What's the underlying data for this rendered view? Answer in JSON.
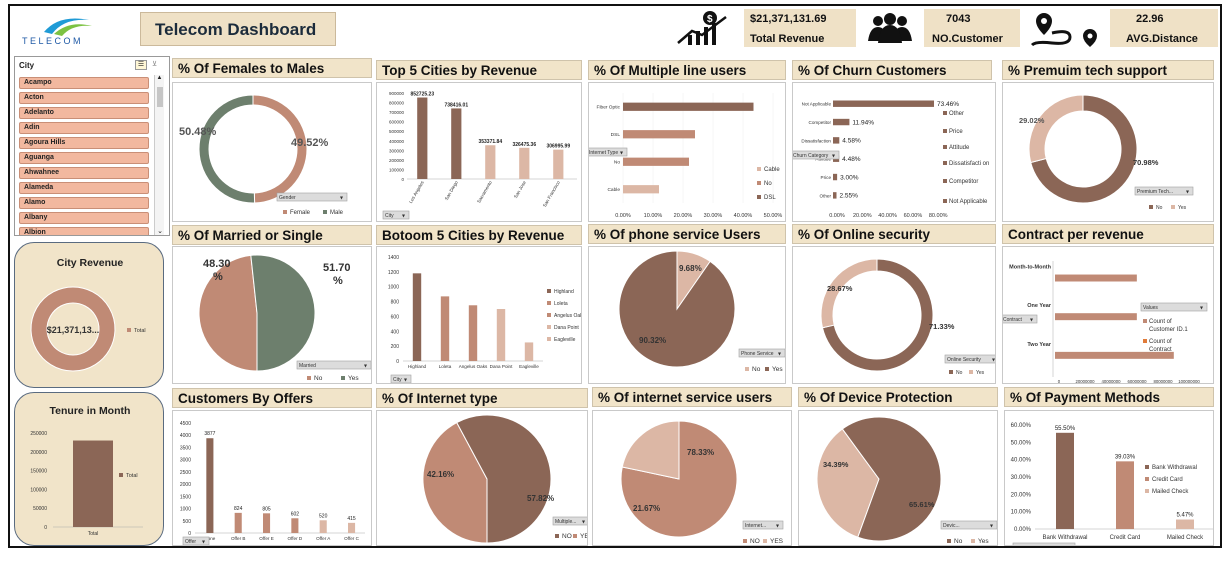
{
  "header": {
    "logo_text": "TELECOM",
    "title": "Telecom Dashboard",
    "kpis": [
      {
        "value": "$21,371,131.69",
        "label": "Total Revenue",
        "icon": "money-growth-icon"
      },
      {
        "value": "7043",
        "label": "NO.Customer",
        "icon": "people-icon"
      },
      {
        "value": "22.96",
        "label": "AVG.Distance",
        "icon": "route-icon"
      }
    ]
  },
  "slicer": {
    "title": "City",
    "items": [
      "Acampo",
      "Acton",
      "Adelanto",
      "Adin",
      "Agoura Hills",
      "Aguanga",
      "Ahwahnee",
      "Alameda",
      "Alamo",
      "Albany",
      "Albion"
    ]
  },
  "colors": {
    "dark": "#8b6656",
    "mid": "#c08a75",
    "light": "#dcb7a5",
    "green": "#6d7f6d",
    "cream": "#f1e4c9"
  },
  "side": {
    "city_revenue": {
      "title": "City Revenue",
      "center": "$21,371,13...",
      "legend": "Total"
    },
    "tenure": {
      "title": "Tenure in Month",
      "legend": "Total",
      "category": "Total",
      "yticks": [
        "250000",
        "200000",
        "150000",
        "100000",
        "50000",
        "0"
      ]
    }
  },
  "panels": {
    "females": {
      "title": "% Of Females to Males",
      "labels": [
        "50.48%",
        "49.52%"
      ],
      "filter": "Gender",
      "legend": [
        "Female",
        "Male"
      ]
    },
    "top5": {
      "title": "Top 5 Cities by Revenue",
      "filter": "City",
      "yticks": [
        "900000",
        "800000",
        "700000",
        "600000",
        "500000",
        "400000",
        "300000",
        "200000",
        "100000",
        "0"
      ]
    },
    "multiple": {
      "title": "% Of Multiple line users",
      "filter": "Internet Type",
      "xticks": [
        "0.00%",
        "10.00%",
        "20.00%",
        "30.00%",
        "40.00%",
        "50.00%"
      ],
      "legend": [
        "Cable",
        "No",
        "DSL"
      ]
    },
    "churn": {
      "title": "% Of Churn Customers",
      "filter": "Churn Category",
      "xticks": [
        "0.00%",
        "20.00%",
        "40.00%",
        "60.00%",
        "80.00%"
      ],
      "legend": [
        "Other",
        "Price",
        "Attitude",
        "Dissatisfacti on",
        "Competitor",
        "Not Applicable"
      ]
    },
    "premium": {
      "title": "% Premuim tech support",
      "labels": [
        "29.02%",
        "70.98%"
      ],
      "filter": "Premium Tech...",
      "legend": [
        "No",
        "Yes"
      ]
    },
    "married": {
      "title": "% Of Married or Single",
      "labels": [
        "48.30 %",
        "51.70 %"
      ],
      "filter": "Married",
      "legend": [
        "No",
        "Yes"
      ]
    },
    "bottom5": {
      "title": "Botoom 5 Cities by Revenue",
      "filter": "City",
      "yticks": [
        "1400",
        "1200",
        "1000",
        "800",
        "600",
        "400",
        "200",
        "0"
      ],
      "legend": [
        "Highland",
        "Loleta",
        "Angelus Oaks",
        "Dana Point",
        "Eagleville"
      ]
    },
    "phone": {
      "title": "% Of phone service Users",
      "labels": [
        "9.68%",
        "90.32%"
      ],
      "filter": "Phone Service",
      "legend": [
        "No",
        "Yes"
      ]
    },
    "security": {
      "title": "% Of Online security",
      "labels": [
        "28.67%",
        "71.33%"
      ],
      "filter": "Online Security",
      "legend": [
        "No",
        "Yes"
      ]
    },
    "contract": {
      "title": "Contract per revenue",
      "filter": "Contract",
      "values_btn": "Values",
      "xticks": [
        "0",
        "20000000",
        "40000000",
        "60000000",
        "80000000",
        "100000000"
      ],
      "legend": [
        "Count of Customer ID.1",
        "Count of Contract"
      ]
    },
    "offers": {
      "title": "Customers By Offers",
      "filter": "Offer",
      "yticks": [
        "4500",
        "4000",
        "3500",
        "3000",
        "2500",
        "2000",
        "1500",
        "1000",
        "500",
        "0"
      ]
    },
    "internet_type": {
      "title": "% Of Internet type",
      "labels": [
        "42.16%",
        "57.82%"
      ],
      "filter": "Multiple...",
      "legend": [
        "NO",
        "YES"
      ]
    },
    "internet_service": {
      "title": "% Of internet service users",
      "labels": [
        "21.67%",
        "78.33%"
      ],
      "filter": "Internet...",
      "legend": [
        "NO",
        "YES"
      ]
    },
    "device": {
      "title": "% Of Device Protection",
      "labels": [
        "34.39%",
        "65.61%"
      ],
      "filter": "Devic...",
      "legend": [
        "No",
        "Yes"
      ]
    },
    "payment": {
      "title": "% Of Payment Methods",
      "filter": "Payment Method",
      "yticks": [
        "60.00%",
        "50.00%",
        "40.00%",
        "30.00%",
        "20.00%",
        "10.00%",
        "0.00%"
      ],
      "legend": [
        "Bank Withdrawal",
        "Credit Card",
        "Mailed Check"
      ]
    }
  },
  "chart_data": [
    {
      "id": "females",
      "type": "pie",
      "donut": true,
      "categories": [
        "Female",
        "Male"
      ],
      "values": [
        49.52,
        50.48
      ]
    },
    {
      "id": "top5",
      "type": "bar",
      "categories": [
        "Los Angeles",
        "San Diego",
        "Sacramento",
        "San Jose",
        "San Francisco"
      ],
      "values": [
        852725.23,
        738416.01,
        353371.84,
        326475.36,
        306995.99
      ],
      "data_labels": [
        "852725.23",
        "738416.01",
        "353371.84",
        "326475.36",
        "306995.99"
      ],
      "ylim": [
        0,
        900000
      ]
    },
    {
      "id": "multiple",
      "type": "bar",
      "orientation": "horizontal",
      "categories": [
        "Fiber Optic",
        "DSL",
        "No",
        "Cable"
      ],
      "values": [
        43.5,
        24,
        22,
        12
      ],
      "xlim": [
        0,
        50
      ]
    },
    {
      "id": "churn",
      "type": "bar",
      "orientation": "horizontal",
      "categories": [
        "Not Applicable",
        "Competitor",
        "Dissatisfaction",
        "Attitude",
        "Price",
        "Other"
      ],
      "values": [
        73.46,
        11.94,
        4.58,
        4.48,
        3.0,
        2.55
      ],
      "data_labels": [
        "73.46%",
        "11.94%",
        "4.58%",
        "4.48%",
        "3.00%",
        "2.55%"
      ],
      "xlim": [
        0,
        80
      ]
    },
    {
      "id": "premium",
      "type": "pie",
      "donut": true,
      "categories": [
        "No",
        "Yes"
      ],
      "values": [
        70.98,
        29.02
      ]
    },
    {
      "id": "married",
      "type": "pie",
      "categories": [
        "No",
        "Yes"
      ],
      "values": [
        48.3,
        51.7
      ]
    },
    {
      "id": "bottom5",
      "type": "bar",
      "categories": [
        "Highland",
        "Loleta",
        "Angelus Oaks",
        "Dana Point",
        "Eagleville"
      ],
      "values": [
        1180,
        870,
        750,
        700,
        250
      ],
      "ylim": [
        0,
        1400
      ]
    },
    {
      "id": "phone",
      "type": "pie",
      "categories": [
        "No",
        "Yes"
      ],
      "values": [
        9.68,
        90.32
      ]
    },
    {
      "id": "security",
      "type": "pie",
      "donut": true,
      "categories": [
        "No",
        "Yes"
      ],
      "values": [
        71.33,
        28.67
      ]
    },
    {
      "id": "contract",
      "type": "bar",
      "orientation": "horizontal",
      "categories": [
        "Month-to-Month",
        "One Year",
        "Two Year"
      ],
      "values": [
        62000000,
        62000000,
        90000000
      ],
      "xlim": [
        0,
        100000000
      ]
    },
    {
      "id": "offers",
      "type": "bar",
      "categories": [
        "None",
        "Offer B",
        "Offer E",
        "Offer D",
        "Offer A",
        "Offer C"
      ],
      "values": [
        3877,
        824,
        805,
        602,
        520,
        415
      ],
      "data_labels": [
        "3877",
        "824",
        "805",
        "602",
        "520",
        "415"
      ],
      "ylim": [
        0,
        4500
      ]
    },
    {
      "id": "internet_type",
      "type": "pie",
      "categories": [
        "NO",
        "YES"
      ],
      "values": [
        42.16,
        57.82
      ]
    },
    {
      "id": "internet_service",
      "type": "pie",
      "categories": [
        "NO",
        "YES"
      ],
      "values": [
        78.33,
        21.67
      ]
    },
    {
      "id": "device",
      "type": "pie",
      "categories": [
        "No",
        "Yes"
      ],
      "values": [
        34.39,
        65.61
      ]
    },
    {
      "id": "payment",
      "type": "bar",
      "categories": [
        "Bank Withdrawal",
        "Credit Card",
        "Mailed Check"
      ],
      "values": [
        55.5,
        39.03,
        5.47
      ],
      "data_labels": [
        "55.50%",
        "39.03%",
        "5.47%"
      ],
      "ylim": [
        0,
        60
      ]
    },
    {
      "id": "city_revenue",
      "type": "pie",
      "donut": true,
      "categories": [
        "Total"
      ],
      "values": [
        21371131.69
      ]
    },
    {
      "id": "tenure",
      "type": "bar",
      "categories": [
        "Total"
      ],
      "values": [
        230000
      ],
      "ylim": [
        0,
        250000
      ]
    }
  ]
}
